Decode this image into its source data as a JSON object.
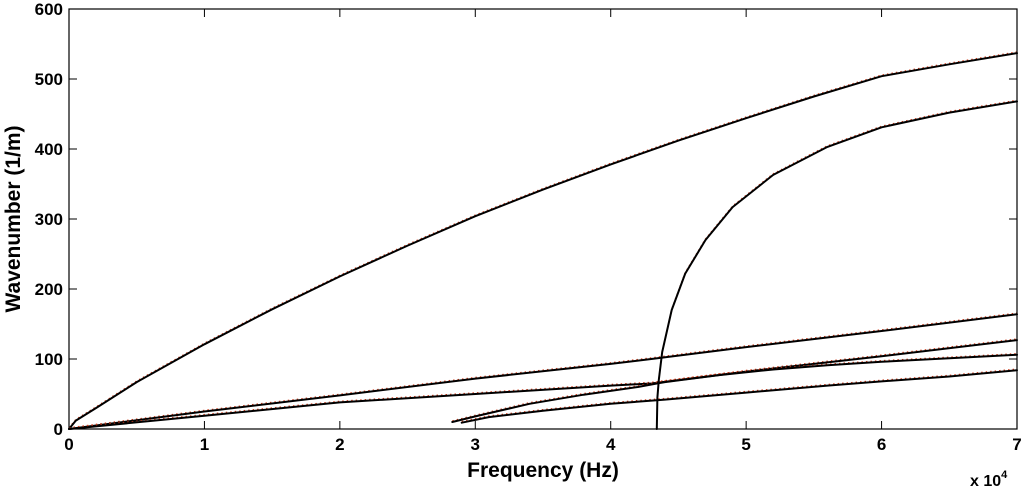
{
  "chart_data": {
    "type": "line",
    "title": "",
    "xlabel": "Frequency (Hz)",
    "ylabel": "Wavenumber (1/m)",
    "x_multiplier": {
      "base": "x 10",
      "exponent": "4"
    },
    "xlim": [
      0,
      70000
    ],
    "ylim": [
      0,
      600
    ],
    "xticks": [
      0,
      10000,
      20000,
      30000,
      40000,
      50000,
      60000,
      70000
    ],
    "xtick_labels": [
      "0",
      "1",
      "2",
      "3",
      "4",
      "5",
      "6",
      "7"
    ],
    "yticks": [
      0,
      100,
      200,
      300,
      400,
      500,
      600
    ],
    "ytick_labels": [
      "0",
      "100",
      "200",
      "300",
      "400",
      "500",
      "600"
    ],
    "grid": false,
    "colors": {
      "curve": "#000000",
      "overlay": "#d04020"
    },
    "series": [
      {
        "x": [
          0,
          500,
          2000,
          5000,
          10000,
          15000,
          20000,
          25000,
          30000,
          35000,
          40000,
          45000,
          50000,
          55000,
          60000,
          65000,
          70000
        ],
        "y": [
          0,
          12,
          30,
          67,
          121,
          171,
          218,
          262,
          304,
          342,
          378,
          412,
          444,
          475,
          504,
          521,
          537
        ]
      },
      {
        "x": [
          0,
          10000,
          20000,
          30000,
          40000,
          43000,
          50000,
          60000,
          70000
        ],
        "y": [
          0,
          25,
          48,
          72,
          93,
          100,
          117,
          140,
          164
        ]
      },
      {
        "x": [
          0,
          10000,
          20000,
          30000,
          40000,
          43000,
          50000,
          60000,
          70000
        ],
        "y": [
          0,
          19,
          38,
          50,
          62,
          65,
          82,
          104,
          127
        ]
      },
      {
        "x": [
          28300,
          30000,
          34000,
          38000,
          42000,
          43400,
          44000,
          48000,
          52000,
          56000,
          60000,
          65000,
          70000
        ],
        "y": [
          10,
          18,
          36,
          49,
          60,
          65,
          67,
          77,
          85,
          91,
          96,
          101,
          106
        ]
      },
      {
        "x": [
          29000,
          31000,
          35000,
          40000,
          44000,
          50000,
          56000,
          60000,
          65000,
          70000
        ],
        "y": [
          9,
          17,
          26,
          36,
          42,
          52,
          62,
          68,
          75,
          84
        ]
      },
      {
        "x": [
          43400,
          43450,
          43550,
          43800,
          44500,
          45500,
          47000,
          49000,
          52000,
          56000,
          60000,
          65000,
          70000
        ],
        "y": [
          0,
          45,
          70,
          110,
          170,
          222,
          270,
          317,
          363,
          403,
          431,
          452,
          468
        ]
      }
    ]
  }
}
